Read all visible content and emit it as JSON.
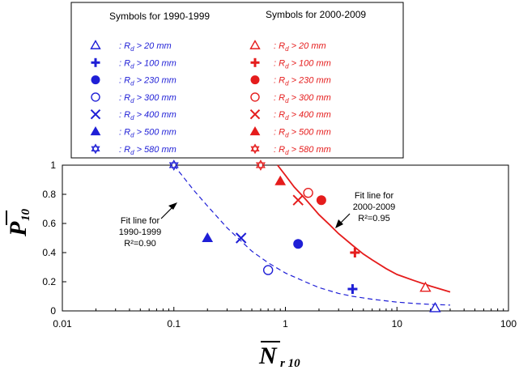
{
  "chart_data": {
    "type": "scatter",
    "xscale": "log",
    "xlim": [
      0.01,
      100
    ],
    "ylim": [
      0,
      1
    ],
    "xticks": [
      "0.01",
      "0.1",
      "1",
      "10",
      "100"
    ],
    "yticks": [
      "0",
      "0.2",
      "0.4",
      "0.6",
      "0.8",
      "1"
    ],
    "xlabel_main": "N",
    "xlabel_sub": "r 10",
    "ylabel_main": "P",
    "ylabel_sub": "10",
    "grid": false,
    "legend": {
      "placement": "top",
      "groups": [
        {
          "heading": "Symbols for 1990-1999",
          "color": "#1f1fd6",
          "entries": [
            {
              "symbol": "triangle-open",
              "label_prefix": ": R",
              "label_sub": "d",
              "label_suffix": " > 20 mm"
            },
            {
              "symbol": "plus",
              "label_prefix": ": R",
              "label_sub": "d",
              "label_suffix": " > 100 mm"
            },
            {
              "symbol": "circle-filled",
              "label_prefix": ": R",
              "label_sub": "d",
              "label_suffix": " > 230 mm"
            },
            {
              "symbol": "circle-open",
              "label_prefix": ": R",
              "label_sub": "d",
              "label_suffix": " > 300 mm"
            },
            {
              "symbol": "x",
              "label_prefix": ": R",
              "label_sub": "d",
              "label_suffix": " > 400 mm"
            },
            {
              "symbol": "triangle-filled",
              "label_prefix": ": R",
              "label_sub": "d",
              "label_suffix": " > 500 mm"
            },
            {
              "symbol": "star-open",
              "label_prefix": ": R",
              "label_sub": "d",
              "label_suffix": " > 580 mm"
            }
          ]
        },
        {
          "heading": "Symbols for 2000-2009",
          "color": "#e51c1c",
          "entries": [
            {
              "symbol": "triangle-open",
              "label_prefix": ": R",
              "label_sub": "d",
              "label_suffix": " > 20 mm"
            },
            {
              "symbol": "plus",
              "label_prefix": ": R",
              "label_sub": "d",
              "label_suffix": " > 100 mm"
            },
            {
              "symbol": "circle-filled",
              "label_prefix": ": R",
              "label_sub": "d",
              "label_suffix": " > 230 mm"
            },
            {
              "symbol": "circle-open",
              "label_prefix": ": R",
              "label_sub": "d",
              "label_suffix": " > 300 mm"
            },
            {
              "symbol": "x",
              "label_prefix": ": R",
              "label_sub": "d",
              "label_suffix": " > 400 mm"
            },
            {
              "symbol": "triangle-filled",
              "label_prefix": ": R",
              "label_sub": "d",
              "label_suffix": " > 500 mm"
            },
            {
              "symbol": "star-open",
              "label_prefix": ": R",
              "label_sub": "d",
              "label_suffix": " > 580 mm"
            }
          ]
        }
      ]
    },
    "series": [
      {
        "color": "#1f1fd6",
        "points": [
          {
            "symbol": "triangle-open",
            "x": 22,
            "y": 0.02
          },
          {
            "symbol": "plus",
            "x": 4.0,
            "y": 0.15
          },
          {
            "symbol": "circle-filled",
            "x": 1.3,
            "y": 0.46
          },
          {
            "symbol": "circle-open",
            "x": 0.7,
            "y": 0.28
          },
          {
            "symbol": "x",
            "x": 0.4,
            "y": 0.5
          },
          {
            "symbol": "triangle-filled",
            "x": 0.2,
            "y": 0.5
          },
          {
            "symbol": "star-open",
            "x": 0.1,
            "y": 1.0
          }
        ],
        "fit": {
          "style": "dashed",
          "x": [
            0.1,
            0.15,
            0.2,
            0.3,
            0.4,
            0.5,
            0.7,
            1,
            1.5,
            2,
            3,
            4,
            6,
            10,
            15,
            20,
            30
          ],
          "y": [
            1.0,
            0.83,
            0.72,
            0.57,
            0.48,
            0.41,
            0.33,
            0.26,
            0.2,
            0.16,
            0.12,
            0.1,
            0.08,
            0.06,
            0.05,
            0.045,
            0.04
          ]
        }
      },
      {
        "color": "#e51c1c",
        "points": [
          {
            "symbol": "triangle-open",
            "x": 18,
            "y": 0.16
          },
          {
            "symbol": "plus",
            "x": 4.2,
            "y": 0.4
          },
          {
            "symbol": "circle-filled",
            "x": 2.1,
            "y": 0.76
          },
          {
            "symbol": "circle-open",
            "x": 1.6,
            "y": 0.81
          },
          {
            "symbol": "x",
            "x": 1.3,
            "y": 0.76
          },
          {
            "symbol": "triangle-filled",
            "x": 0.9,
            "y": 0.89
          },
          {
            "symbol": "star-open",
            "x": 0.6,
            "y": 1.0
          }
        ],
        "fit": {
          "style": "solid",
          "x": [
            0.85,
            1,
            1.2,
            1.5,
            2,
            2.5,
            3,
            4,
            5,
            6,
            8,
            10,
            14,
            20,
            30
          ],
          "y": [
            1.0,
            0.93,
            0.85,
            0.77,
            0.66,
            0.59,
            0.53,
            0.45,
            0.39,
            0.35,
            0.29,
            0.25,
            0.21,
            0.17,
            0.13
          ]
        }
      }
    ],
    "annotations": [
      {
        "lines": [
          "Fit line for",
          "1990-1999",
          "R²=0.90"
        ]
      },
      {
        "lines": [
          "Fit line for",
          "2000-2009",
          "R²=0.95"
        ]
      }
    ]
  }
}
